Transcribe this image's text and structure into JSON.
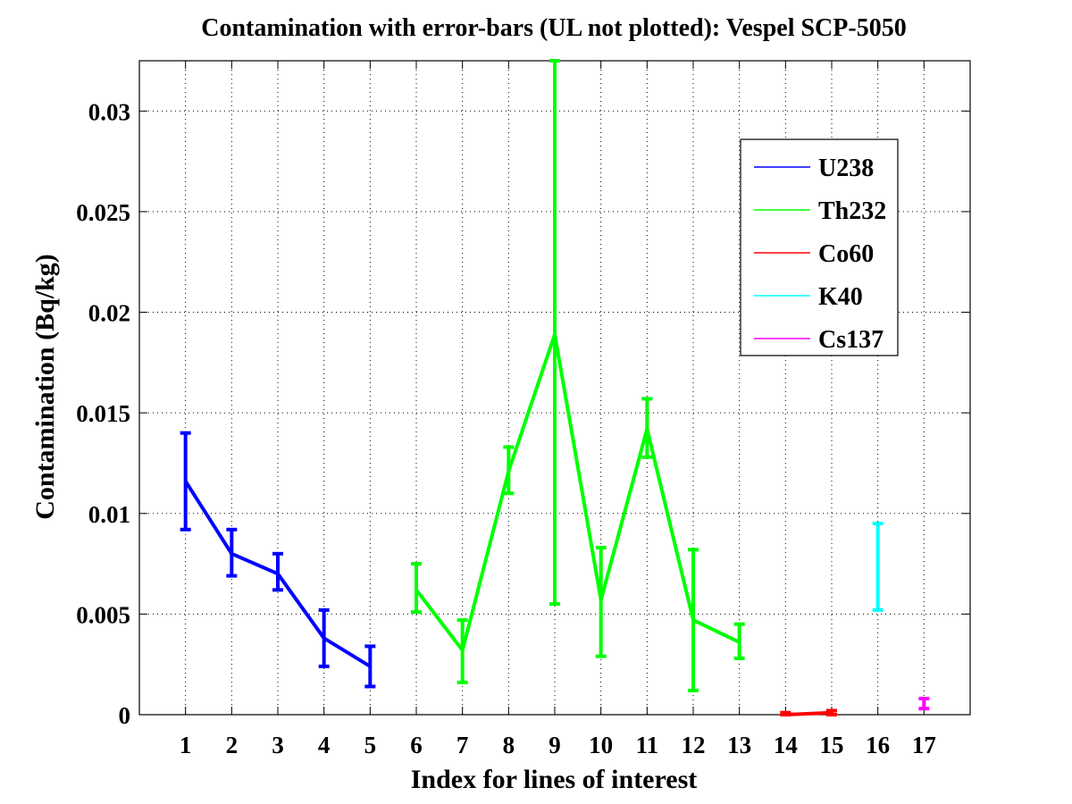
{
  "chart_data": {
    "type": "line",
    "title": "Contamination with error-bars (UL not plotted): Vespel SCP-5050",
    "xlabel": "Index for lines of interest",
    "ylabel": "Contamination (Bq/kg)",
    "xlim": [
      0,
      18
    ],
    "ylim": [
      0,
      0.0325
    ],
    "xticks": [
      1,
      2,
      3,
      4,
      5,
      6,
      7,
      8,
      9,
      10,
      11,
      12,
      13,
      14,
      15,
      16,
      17
    ],
    "xtick_labels": [
      "1",
      "2",
      "3",
      "4",
      "5",
      "6",
      "7",
      "8",
      "9",
      "10",
      "11",
      "12",
      "13",
      "14",
      "15",
      "16",
      "17"
    ],
    "yticks": [
      0,
      0.005,
      0.01,
      0.015,
      0.02,
      0.025,
      0.03
    ],
    "ytick_labels": [
      "0",
      "0.005",
      "0.01",
      "0.015",
      "0.02",
      "0.025",
      "0.03"
    ],
    "grid": true,
    "legend_position": "top-right",
    "series": [
      {
        "name": "U238",
        "color": "#0000ff",
        "x": [
          1,
          2,
          3,
          4,
          5
        ],
        "y": [
          0.0116,
          0.008,
          0.007,
          0.0038,
          0.0024
        ],
        "err_low": [
          0.0092,
          0.0069,
          0.0062,
          0.0024,
          0.0014
        ],
        "err_high": [
          0.014,
          0.0092,
          0.008,
          0.0052,
          0.0034
        ]
      },
      {
        "name": "Th232",
        "color": "#00ff00",
        "x": [
          6,
          7,
          8,
          9,
          10,
          11,
          12,
          13
        ],
        "y": [
          0.0062,
          0.0032,
          0.0121,
          0.0189,
          0.0057,
          0.0142,
          0.0047,
          0.0036
        ],
        "err_low": [
          0.0051,
          0.0016,
          0.011,
          0.0055,
          0.0029,
          0.0128,
          0.0012,
          0.0028
        ],
        "err_high": [
          0.0075,
          0.0047,
          0.0133,
          0.0325,
          0.0083,
          0.0157,
          0.0082,
          0.0045
        ]
      },
      {
        "name": "Co60",
        "color": "#ff0000",
        "x": [
          14,
          15
        ],
        "y": [
          0.0,
          0.0001
        ],
        "err_low": [
          -0.0001,
          0.0
        ],
        "err_high": [
          0.0001,
          0.0002
        ]
      },
      {
        "name": "K40",
        "color": "#00ffff",
        "x": [
          16
        ],
        "y": [
          0.0073
        ],
        "err_low": [
          0.0052
        ],
        "err_high": [
          0.0095
        ]
      },
      {
        "name": "Cs137",
        "color": "#ff00ff",
        "x": [
          17
        ],
        "y": [
          0.0005
        ],
        "err_low": [
          0.0003
        ],
        "err_high": [
          0.0008
        ]
      }
    ]
  }
}
